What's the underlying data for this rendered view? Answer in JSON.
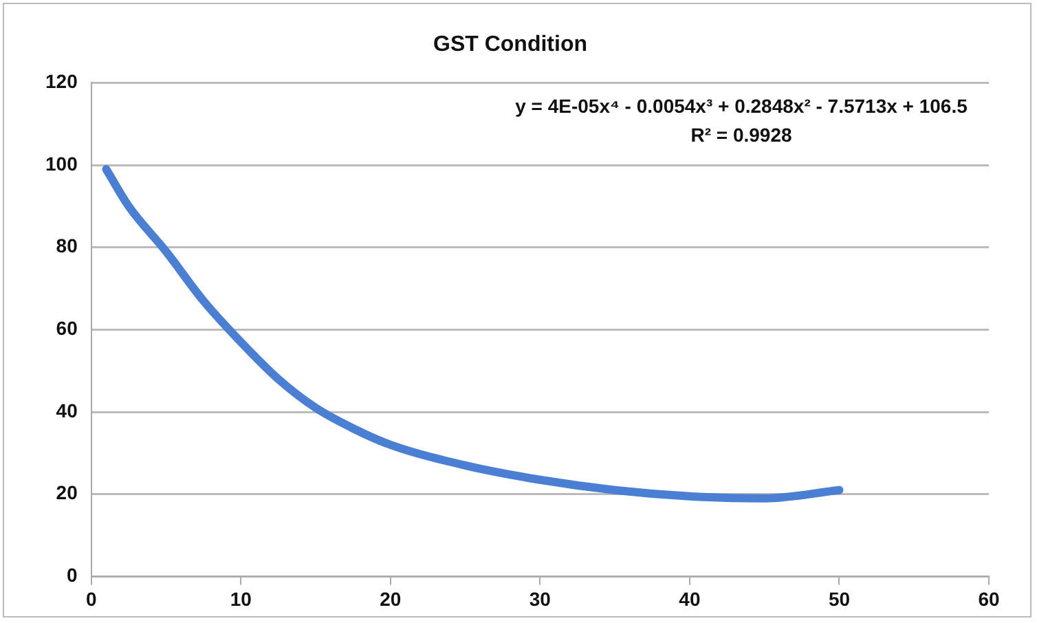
{
  "chart_data": {
    "type": "line",
    "title": "GST Condition",
    "annotations": [
      "y = 4E-05x⁴ - 0.0054x³ + 0.2848x² - 7.5713x + 106.5",
      "R² = 0.9928"
    ],
    "x": [
      1,
      2.5,
      5,
      7.5,
      10,
      12.5,
      15,
      17.5,
      20,
      25,
      30,
      35,
      40,
      45,
      50
    ],
    "series": [
      {
        "color": "#4a7fd4",
        "values": [
          99,
          90,
          79,
          67,
          57,
          48,
          41,
          36,
          32,
          27,
          23.5,
          21,
          19.5,
          19,
          21
        ]
      }
    ],
    "xlim": [
      0,
      60
    ],
    "xticks": [
      0,
      10,
      20,
      30,
      40,
      50,
      60
    ],
    "ylim": [
      0,
      120
    ],
    "yticks": [
      0,
      20,
      40,
      60,
      80,
      100,
      120
    ],
    "grid": "y",
    "legend": false,
    "marker": "none",
    "line_style": "solid"
  }
}
